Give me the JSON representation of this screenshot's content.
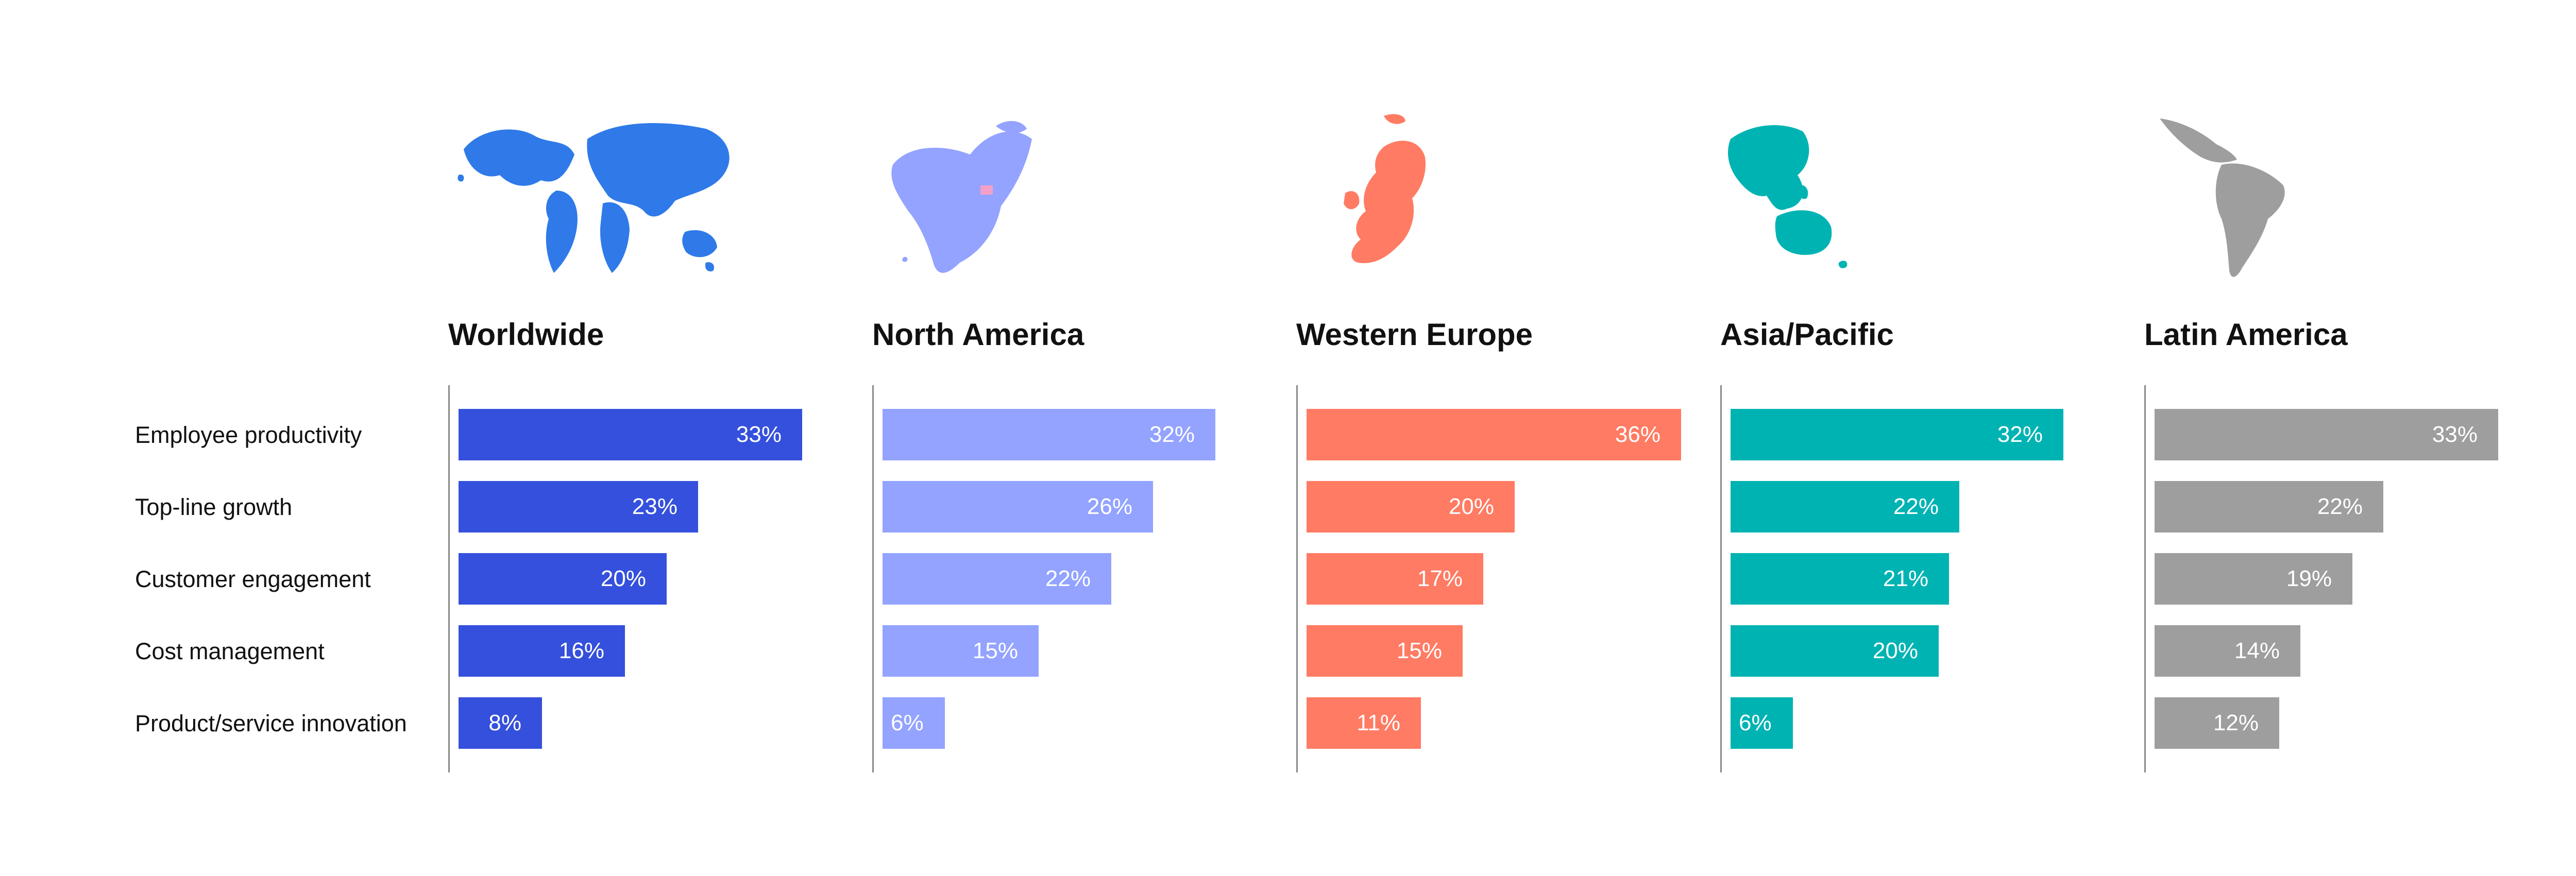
{
  "chart_data": {
    "type": "bar",
    "orientation": "horizontal",
    "categories": [
      "Employee productivity",
      "Top-line growth",
      "Customer engagement",
      "Cost management",
      "Product/service innovation"
    ],
    "value_suffix": "%",
    "xlim": [
      0,
      40
    ],
    "grid": false,
    "panels": [
      {
        "name": "Worldwide",
        "color": "#3550dc",
        "map_icon": "world-map-icon",
        "values": [
          33,
          23,
          20,
          16,
          8
        ]
      },
      {
        "name": "North America",
        "color": "#93a3ff",
        "map_icon": "north-america-map-icon",
        "values": [
          32,
          26,
          22,
          15,
          6
        ]
      },
      {
        "name": "Western Europe",
        "color": "#ff7b63",
        "map_icon": "western-europe-map-icon",
        "values": [
          36,
          20,
          17,
          15,
          11
        ]
      },
      {
        "name": "Asia/Pacific",
        "color": "#00b3b3",
        "map_icon": "asia-pacific-map-icon",
        "values": [
          32,
          22,
          21,
          20,
          6
        ]
      },
      {
        "name": "Latin America",
        "color": "#9e9e9e",
        "map_icon": "latin-america-map-icon",
        "values": [
          33,
          22,
          19,
          14,
          12
        ]
      }
    ]
  }
}
